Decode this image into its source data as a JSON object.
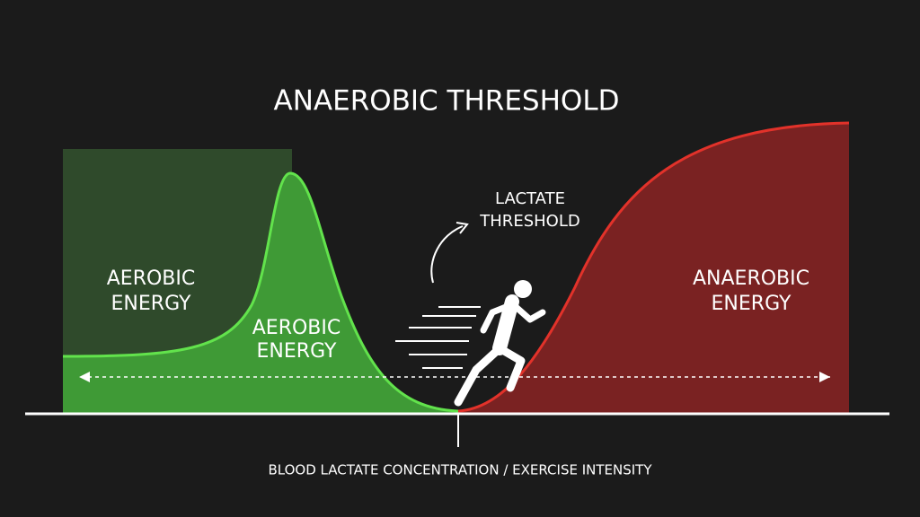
{
  "header": {
    "title": "ANAEROBIC THRESHOLD"
  },
  "labels": {
    "aerobic_box": [
      "AEROBIC",
      "ENERGY"
    ],
    "aerobic_peak": [
      "AEROBIC",
      "ENERGY"
    ],
    "lactate_threshold": [
      "LACTATE",
      "THRESHOLD"
    ],
    "anaerobic": [
      "ANAEROBIC",
      "ENERGY"
    ]
  },
  "axis_label": "BLOOD LACTATE CONCENTRATION / EXERCISE INTENSITY"
}
